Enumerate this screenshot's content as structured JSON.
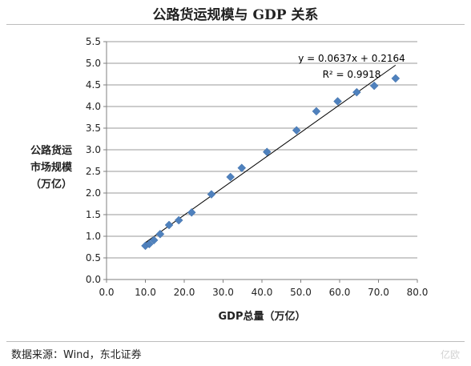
{
  "page": {
    "title": "公路货运规模与 GDP 关系",
    "source": "数据来源：Wind，东北证券",
    "watermark": "亿欧"
  },
  "chart_data": {
    "type": "scatter",
    "title": "公路货运规模与 GDP 关系",
    "xlabel": "GDP总量（万亿）",
    "ylabel_lines": [
      "公路货运",
      "市场规模",
      "（万亿）"
    ],
    "xlim": [
      0,
      80
    ],
    "ylim": [
      0,
      5.5
    ],
    "x_ticks": [
      0.0,
      10.0,
      20.0,
      30.0,
      40.0,
      50.0,
      60.0,
      70.0,
      80.0
    ],
    "y_ticks": [
      0.0,
      0.5,
      1.0,
      1.5,
      2.0,
      2.5,
      3.0,
      3.5,
      4.0,
      4.5,
      5.0,
      5.5
    ],
    "grid": "horizontal",
    "marker": "diamond",
    "marker_color": "#4f81bd",
    "points": [
      {
        "x": 10.0,
        "y": 0.78
      },
      {
        "x": 11.0,
        "y": 0.82
      },
      {
        "x": 12.2,
        "y": 0.91
      },
      {
        "x": 13.8,
        "y": 1.05
      },
      {
        "x": 16.1,
        "y": 1.26
      },
      {
        "x": 18.6,
        "y": 1.37
      },
      {
        "x": 21.9,
        "y": 1.55
      },
      {
        "x": 27.0,
        "y": 1.97
      },
      {
        "x": 31.9,
        "y": 2.37
      },
      {
        "x": 34.8,
        "y": 2.58
      },
      {
        "x": 41.3,
        "y": 2.95
      },
      {
        "x": 48.9,
        "y": 3.45
      },
      {
        "x": 54.0,
        "y": 3.89
      },
      {
        "x": 59.5,
        "y": 4.12
      },
      {
        "x": 64.4,
        "y": 4.33
      },
      {
        "x": 68.9,
        "y": 4.48
      },
      {
        "x": 74.4,
        "y": 4.65
      }
    ],
    "trendline": {
      "slope": 0.0637,
      "intercept": 0.2164,
      "x_range": [
        10.0,
        74.4
      ],
      "equation": "y = 0.0637x + 0.2164",
      "r_squared": "R² = 0.9918"
    }
  }
}
